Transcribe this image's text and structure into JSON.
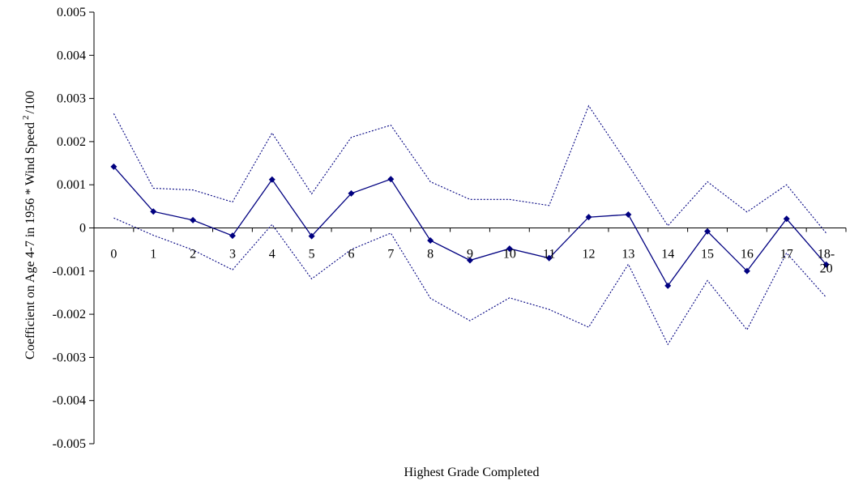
{
  "chart_data": {
    "type": "line",
    "title": "",
    "xlabel": "Highest Grade Completed",
    "ylabel": "Coefficient on Age 4-7 in 1956 * Wind Speed",
    "ylabel_sup": "2",
    "ylabel_suffix": "/100",
    "categories": [
      "0",
      "1",
      "2",
      "3",
      "4",
      "5",
      "6",
      "7",
      "8",
      "9",
      "10",
      "11",
      "12",
      "13",
      "14",
      "15",
      "16",
      "17",
      "18-20"
    ],
    "ylim": [
      -0.005,
      0.005
    ],
    "yticks": [
      "0.005",
      "0.004",
      "0.003",
      "0.002",
      "0.001",
      "0",
      "-0.001",
      "-0.002",
      "-0.003",
      "-0.004",
      "-0.005"
    ],
    "ytick_values": [
      0.005,
      0.004,
      0.003,
      0.002,
      0.001,
      0,
      -0.001,
      -0.002,
      -0.003,
      -0.004,
      -0.005
    ],
    "grid": false,
    "legend": "none",
    "series": [
      {
        "style": "solid-marker",
        "color": "#000080",
        "values": [
          0.00142,
          0.00038,
          0.00018,
          -0.00018,
          0.00112,
          -0.00019,
          0.0008,
          0.00113,
          -0.00029,
          -0.00075,
          -0.00048,
          -0.0007,
          0.00025,
          0.00031,
          -0.00134,
          -8e-05,
          -0.001,
          0.00021,
          -0.00085
        ]
      },
      {
        "style": "dotted",
        "color": "#000080",
        "values": [
          0.00265,
          0.00092,
          0.00088,
          0.0006,
          0.0022,
          0.00079,
          0.0021,
          0.00238,
          0.00107,
          0.00066,
          0.00066,
          0.00052,
          0.00283,
          0.00146,
          5e-05,
          0.00107,
          0.00037,
          0.001,
          -0.00012
        ]
      },
      {
        "style": "dotted",
        "color": "#000080",
        "values": [
          0.00023,
          -0.00017,
          -0.00051,
          -0.00097,
          8e-05,
          -0.00118,
          -0.0005,
          -0.00012,
          -0.00163,
          -0.00215,
          -0.00162,
          -0.00189,
          -0.0023,
          -0.00084,
          -0.0027,
          -0.00122,
          -0.00236,
          -0.00058,
          -0.00161
        ]
      }
    ]
  }
}
